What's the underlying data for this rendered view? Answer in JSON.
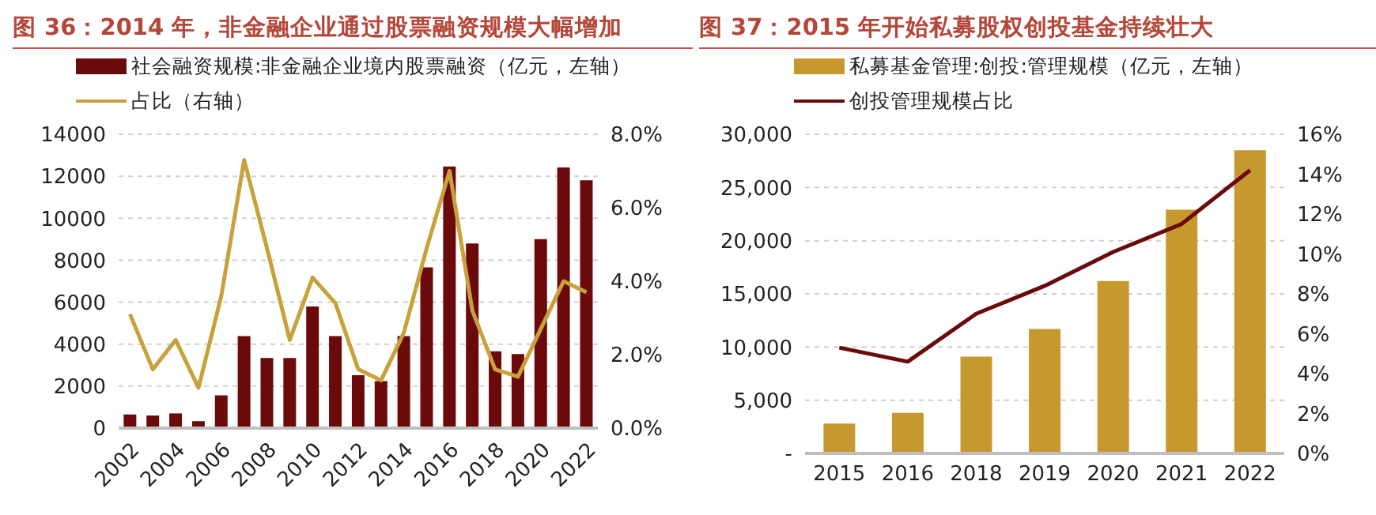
{
  "chart_data": [
    {
      "type": "bar",
      "title": "图 36：2014 年，非金融企业通过股票融资规模大幅增加",
      "categories": [
        "2002",
        null,
        "2004",
        null,
        "2006",
        null,
        "2008",
        null,
        "2010",
        null,
        "2012",
        null,
        "2014",
        null,
        "2016",
        null,
        "2018",
        null,
        "2020",
        null,
        "2022"
      ],
      "series": [
        {
          "name": "社会融资规模:非金融企业境内股票融资（亿元，左轴）",
          "color": "#6b0a0a",
          "values": [
            650,
            600,
            700,
            330,
            1560,
            4380,
            3340,
            3340,
            5800,
            4380,
            2520,
            2240,
            4380,
            7660,
            12470,
            8800,
            3660,
            3530,
            9000,
            12420,
            11810
          ]
        },
        {
          "name": "占比（右轴）",
          "type": "line",
          "axis": "y2",
          "color": "#c9a13b",
          "values": [
            3.1,
            1.6,
            2.4,
            1.1,
            3.6,
            7.3,
            4.9,
            2.4,
            4.1,
            3.4,
            1.6,
            1.3,
            2.6,
            4.9,
            7.0,
            3.2,
            1.6,
            1.4,
            2.7,
            4.0,
            3.7
          ]
        }
      ],
      "ylim": [
        0,
        14000
      ],
      "yticks": [
        0,
        2000,
        4000,
        6000,
        8000,
        10000,
        12000,
        14000
      ],
      "y2lim": [
        0,
        8
      ],
      "y2ticks": [
        {
          "value": 0,
          "label": "0.0%"
        },
        {
          "value": 2,
          "label": "2.0%"
        },
        {
          "value": 4,
          "label": "4.0%"
        },
        {
          "value": 6,
          "label": "6.0%"
        },
        {
          "value": 8,
          "label": "8.0%"
        }
      ],
      "grid": "y",
      "legend": "top"
    },
    {
      "type": "bar",
      "title": "图 37：2015 年开始私募股权创投基金持续壮大",
      "categories": [
        "2015",
        "2016",
        "2018",
        "2019",
        "2020",
        "2021",
        "2022"
      ],
      "series": [
        {
          "name": "私募基金管理:创投:管理规模（亿元，左轴）",
          "color": "#c6992f",
          "values": [
            2800,
            3800,
            9100,
            11700,
            16200,
            22900,
            28500
          ]
        },
        {
          "name": "创投管理规模占比",
          "type": "line",
          "axis": "y2",
          "color": "#6b0a0a",
          "values": [
            5.3,
            4.6,
            7.0,
            8.4,
            10.1,
            11.5,
            14.2
          ]
        }
      ],
      "ylim": [
        0,
        30000
      ],
      "yticks": [
        {
          "value": 0,
          "label": "-"
        },
        {
          "value": 5000,
          "label": "5,000"
        },
        {
          "value": 10000,
          "label": "10,000"
        },
        {
          "value": 15000,
          "label": "15,000"
        },
        {
          "value": 20000,
          "label": "20,000"
        },
        {
          "value": 25000,
          "label": "25,000"
        },
        {
          "value": 30000,
          "label": "30,000"
        }
      ],
      "y2lim": [
        0,
        16
      ],
      "y2ticks": [
        {
          "value": 0,
          "label": "0%"
        },
        {
          "value": 2,
          "label": "2%"
        },
        {
          "value": 4,
          "label": "4%"
        },
        {
          "value": 6,
          "label": "6%"
        },
        {
          "value": 8,
          "label": "8%"
        },
        {
          "value": 10,
          "label": "10%"
        },
        {
          "value": 12,
          "label": "12%"
        },
        {
          "value": 14,
          "label": "14%"
        },
        {
          "value": 16,
          "label": "16%"
        }
      ],
      "grid": "y",
      "legend": "top"
    }
  ]
}
